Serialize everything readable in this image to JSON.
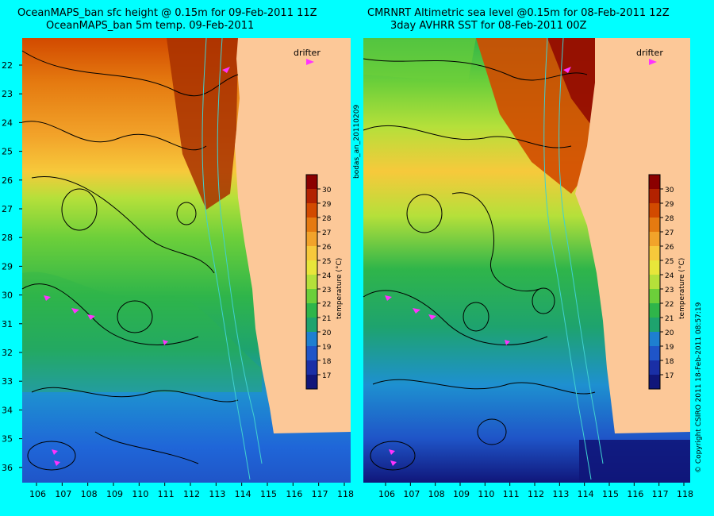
{
  "left_panel": {
    "title_line1": "OceanMAPS_ban sfc height @ 0.15m for 09-Feb-2011 11Z",
    "title_line2": "OceanMAPS_ban 5m temp. 09-Feb-2011"
  },
  "right_panel": {
    "title_line1": "CMRNRT Altimetric sea level  @0.15m  for 08-Feb-2011 12Z",
    "title_line2": "3day AVHRR SST for 08-Feb-2011 00Z"
  },
  "drifter_label": "drifter",
  "analysis_id": "bodas_an_20110209",
  "copyright": "© Copyright CSIRO 2011   18-Feb-2011 08:57:19",
  "latitudes": [
    "22",
    "23",
    "24",
    "25",
    "26",
    "27",
    "28",
    "29",
    "30",
    "31",
    "32",
    "33",
    "34",
    "35",
    "36"
  ],
  "longitudes": [
    "106",
    "107",
    "108",
    "109",
    "110",
    "111",
    "112",
    "113",
    "114",
    "115",
    "116",
    "117",
    "118"
  ],
  "colorbar": {
    "title": "temperature (°C)",
    "ticks": [
      "30",
      "29",
      "28",
      "27",
      "26",
      "25",
      "24",
      "23",
      "22",
      "21",
      "20",
      "19",
      "18",
      "17"
    ],
    "colors": [
      "#8b0000",
      "#b22200",
      "#d24a00",
      "#e57a10",
      "#f2a32a",
      "#f7c93b",
      "#e8e63a",
      "#b5e03a",
      "#6ccf3a",
      "#2fb54a",
      "#1ea36e",
      "#1e7fd0",
      "#1f55c8",
      "#1a2fa6",
      "#10167a"
    ]
  },
  "colors": {
    "land": "#fcc898",
    "frame": "#00ffff",
    "drifter": "#ff33ff",
    "contour": "#000000",
    "bathymetry": "#40d0d0"
  },
  "icons": [
    "drifter-arrow-icon"
  ]
}
